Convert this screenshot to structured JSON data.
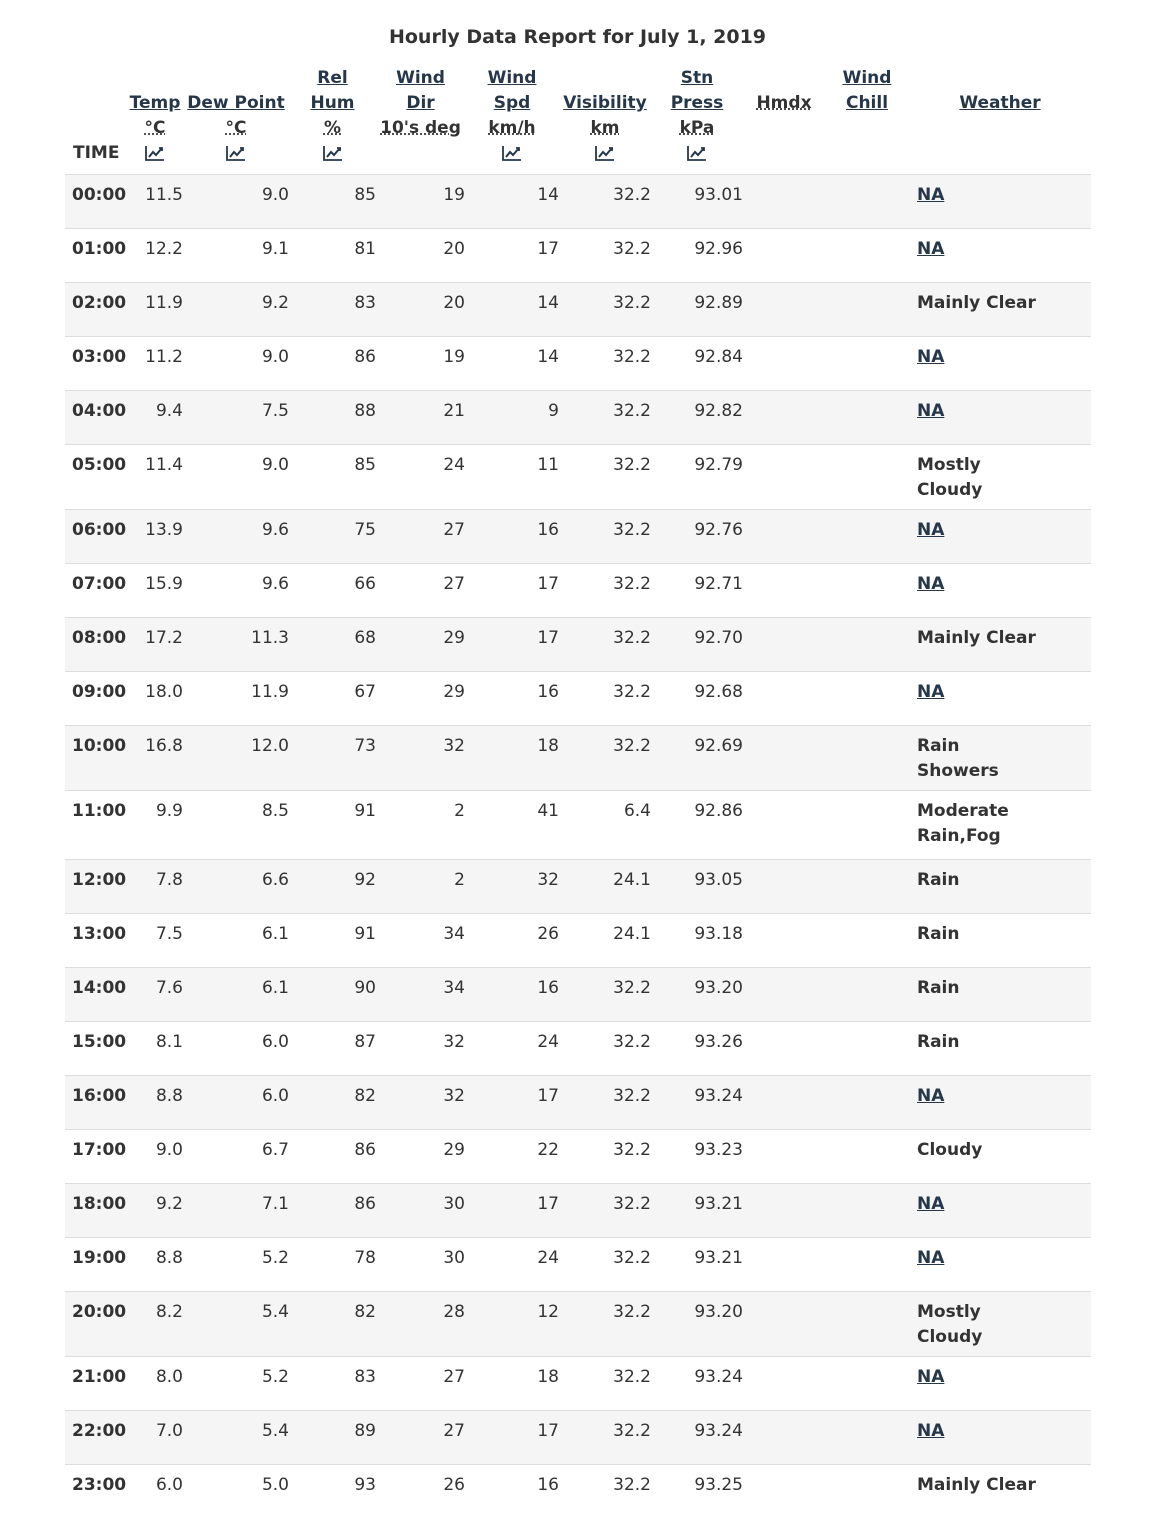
{
  "title": "Hourly Data Report for July 1, 2019",
  "headers": {
    "time": "TIME",
    "temp": {
      "line1": "Temp",
      "unit": "°C"
    },
    "dew": {
      "line1": "Dew Point",
      "unit": "°C"
    },
    "hum": {
      "line1": "Rel",
      "line2": "Hum",
      "unit": "%"
    },
    "wdir": {
      "line1": "Wind",
      "line2": "Dir",
      "unit": "10's deg"
    },
    "wspd": {
      "line1": "Wind",
      "line2": "Spd",
      "unit": "km/h"
    },
    "vis": {
      "line1": "Visibility",
      "unit": "km"
    },
    "press": {
      "line1": "Stn",
      "line2": "Press",
      "unit": "kPa"
    },
    "hmdx": "Hmdx",
    "chill": {
      "line1": "Wind",
      "line2": "Chill"
    },
    "weather": "Weather"
  },
  "rows": [
    {
      "time": "00:00",
      "temp": "11.5",
      "dew": "9.0",
      "hum": "85",
      "wdir": "19",
      "wspd": "14",
      "vis": "32.2",
      "press": "93.01",
      "hmdx": "",
      "chill": "",
      "weather": "NA",
      "link": true
    },
    {
      "time": "01:00",
      "temp": "12.2",
      "dew": "9.1",
      "hum": "81",
      "wdir": "20",
      "wspd": "17",
      "vis": "32.2",
      "press": "92.96",
      "hmdx": "",
      "chill": "",
      "weather": "NA",
      "link": true
    },
    {
      "time": "02:00",
      "temp": "11.9",
      "dew": "9.2",
      "hum": "83",
      "wdir": "20",
      "wspd": "14",
      "vis": "32.2",
      "press": "92.89",
      "hmdx": "",
      "chill": "",
      "weather": "Mainly Clear",
      "link": false
    },
    {
      "time": "03:00",
      "temp": "11.2",
      "dew": "9.0",
      "hum": "86",
      "wdir": "19",
      "wspd": "14",
      "vis": "32.2",
      "press": "92.84",
      "hmdx": "",
      "chill": "",
      "weather": "NA",
      "link": true
    },
    {
      "time": "04:00",
      "temp": "9.4",
      "dew": "7.5",
      "hum": "88",
      "wdir": "21",
      "wspd": "9",
      "vis": "32.2",
      "press": "92.82",
      "hmdx": "",
      "chill": "",
      "weather": "NA",
      "link": true
    },
    {
      "time": "05:00",
      "temp": "11.4",
      "dew": "9.0",
      "hum": "85",
      "wdir": "24",
      "wspd": "11",
      "vis": "32.2",
      "press": "92.79",
      "hmdx": "",
      "chill": "",
      "weather": "Mostly Cloudy",
      "link": false
    },
    {
      "time": "06:00",
      "temp": "13.9",
      "dew": "9.6",
      "hum": "75",
      "wdir": "27",
      "wspd": "16",
      "vis": "32.2",
      "press": "92.76",
      "hmdx": "",
      "chill": "",
      "weather": "NA",
      "link": true
    },
    {
      "time": "07:00",
      "temp": "15.9",
      "dew": "9.6",
      "hum": "66",
      "wdir": "27",
      "wspd": "17",
      "vis": "32.2",
      "press": "92.71",
      "hmdx": "",
      "chill": "",
      "weather": "NA",
      "link": true
    },
    {
      "time": "08:00",
      "temp": "17.2",
      "dew": "11.3",
      "hum": "68",
      "wdir": "29",
      "wspd": "17",
      "vis": "32.2",
      "press": "92.70",
      "hmdx": "",
      "chill": "",
      "weather": "Mainly Clear",
      "link": false
    },
    {
      "time": "09:00",
      "temp": "18.0",
      "dew": "11.9",
      "hum": "67",
      "wdir": "29",
      "wspd": "16",
      "vis": "32.2",
      "press": "92.68",
      "hmdx": "",
      "chill": "",
      "weather": "NA",
      "link": true
    },
    {
      "time": "10:00",
      "temp": "16.8",
      "dew": "12.0",
      "hum": "73",
      "wdir": "32",
      "wspd": "18",
      "vis": "32.2",
      "press": "92.69",
      "hmdx": "",
      "chill": "",
      "weather": "Rain Showers",
      "link": false
    },
    {
      "time": "11:00",
      "temp": "9.9",
      "dew": "8.5",
      "hum": "91",
      "wdir": "2",
      "wspd": "41",
      "vis": "6.4",
      "press": "92.86",
      "hmdx": "",
      "chill": "",
      "weather": "Moderate Rain,Fog",
      "link": false
    },
    {
      "time": "12:00",
      "temp": "7.8",
      "dew": "6.6",
      "hum": "92",
      "wdir": "2",
      "wspd": "32",
      "vis": "24.1",
      "press": "93.05",
      "hmdx": "",
      "chill": "",
      "weather": "Rain",
      "link": false
    },
    {
      "time": "13:00",
      "temp": "7.5",
      "dew": "6.1",
      "hum": "91",
      "wdir": "34",
      "wspd": "26",
      "vis": "24.1",
      "press": "93.18",
      "hmdx": "",
      "chill": "",
      "weather": "Rain",
      "link": false
    },
    {
      "time": "14:00",
      "temp": "7.6",
      "dew": "6.1",
      "hum": "90",
      "wdir": "34",
      "wspd": "16",
      "vis": "32.2",
      "press": "93.20",
      "hmdx": "",
      "chill": "",
      "weather": "Rain",
      "link": false
    },
    {
      "time": "15:00",
      "temp": "8.1",
      "dew": "6.0",
      "hum": "87",
      "wdir": "32",
      "wspd": "24",
      "vis": "32.2",
      "press": "93.26",
      "hmdx": "",
      "chill": "",
      "weather": "Rain",
      "link": false
    },
    {
      "time": "16:00",
      "temp": "8.8",
      "dew": "6.0",
      "hum": "82",
      "wdir": "32",
      "wspd": "17",
      "vis": "32.2",
      "press": "93.24",
      "hmdx": "",
      "chill": "",
      "weather": "NA",
      "link": true
    },
    {
      "time": "17:00",
      "temp": "9.0",
      "dew": "6.7",
      "hum": "86",
      "wdir": "29",
      "wspd": "22",
      "vis": "32.2",
      "press": "93.23",
      "hmdx": "",
      "chill": "",
      "weather": "Cloudy",
      "link": false
    },
    {
      "time": "18:00",
      "temp": "9.2",
      "dew": "7.1",
      "hum": "86",
      "wdir": "30",
      "wspd": "17",
      "vis": "32.2",
      "press": "93.21",
      "hmdx": "",
      "chill": "",
      "weather": "NA",
      "link": true
    },
    {
      "time": "19:00",
      "temp": "8.8",
      "dew": "5.2",
      "hum": "78",
      "wdir": "30",
      "wspd": "24",
      "vis": "32.2",
      "press": "93.21",
      "hmdx": "",
      "chill": "",
      "weather": "NA",
      "link": true
    },
    {
      "time": "20:00",
      "temp": "8.2",
      "dew": "5.4",
      "hum": "82",
      "wdir": "28",
      "wspd": "12",
      "vis": "32.2",
      "press": "93.20",
      "hmdx": "",
      "chill": "",
      "weather": "Mostly Cloudy",
      "link": false
    },
    {
      "time": "21:00",
      "temp": "8.0",
      "dew": "5.2",
      "hum": "83",
      "wdir": "27",
      "wspd": "18",
      "vis": "32.2",
      "press": "93.24",
      "hmdx": "",
      "chill": "",
      "weather": "NA",
      "link": true
    },
    {
      "time": "22:00",
      "temp": "7.0",
      "dew": "5.4",
      "hum": "89",
      "wdir": "27",
      "wspd": "17",
      "vis": "32.2",
      "press": "93.24",
      "hmdx": "",
      "chill": "",
      "weather": "NA",
      "link": true
    },
    {
      "time": "23:00",
      "temp": "6.0",
      "dew": "5.0",
      "hum": "93",
      "wdir": "26",
      "wspd": "16",
      "vis": "32.2",
      "press": "93.25",
      "hmdx": "",
      "chill": "",
      "weather": "Mainly Clear",
      "link": false
    }
  ],
  "colors": {
    "link": "#26374a",
    "stripe": "#f5f5f5",
    "border": "#dddddd",
    "text": "#333333"
  },
  "icons": {
    "chart": "line-chart-icon"
  }
}
